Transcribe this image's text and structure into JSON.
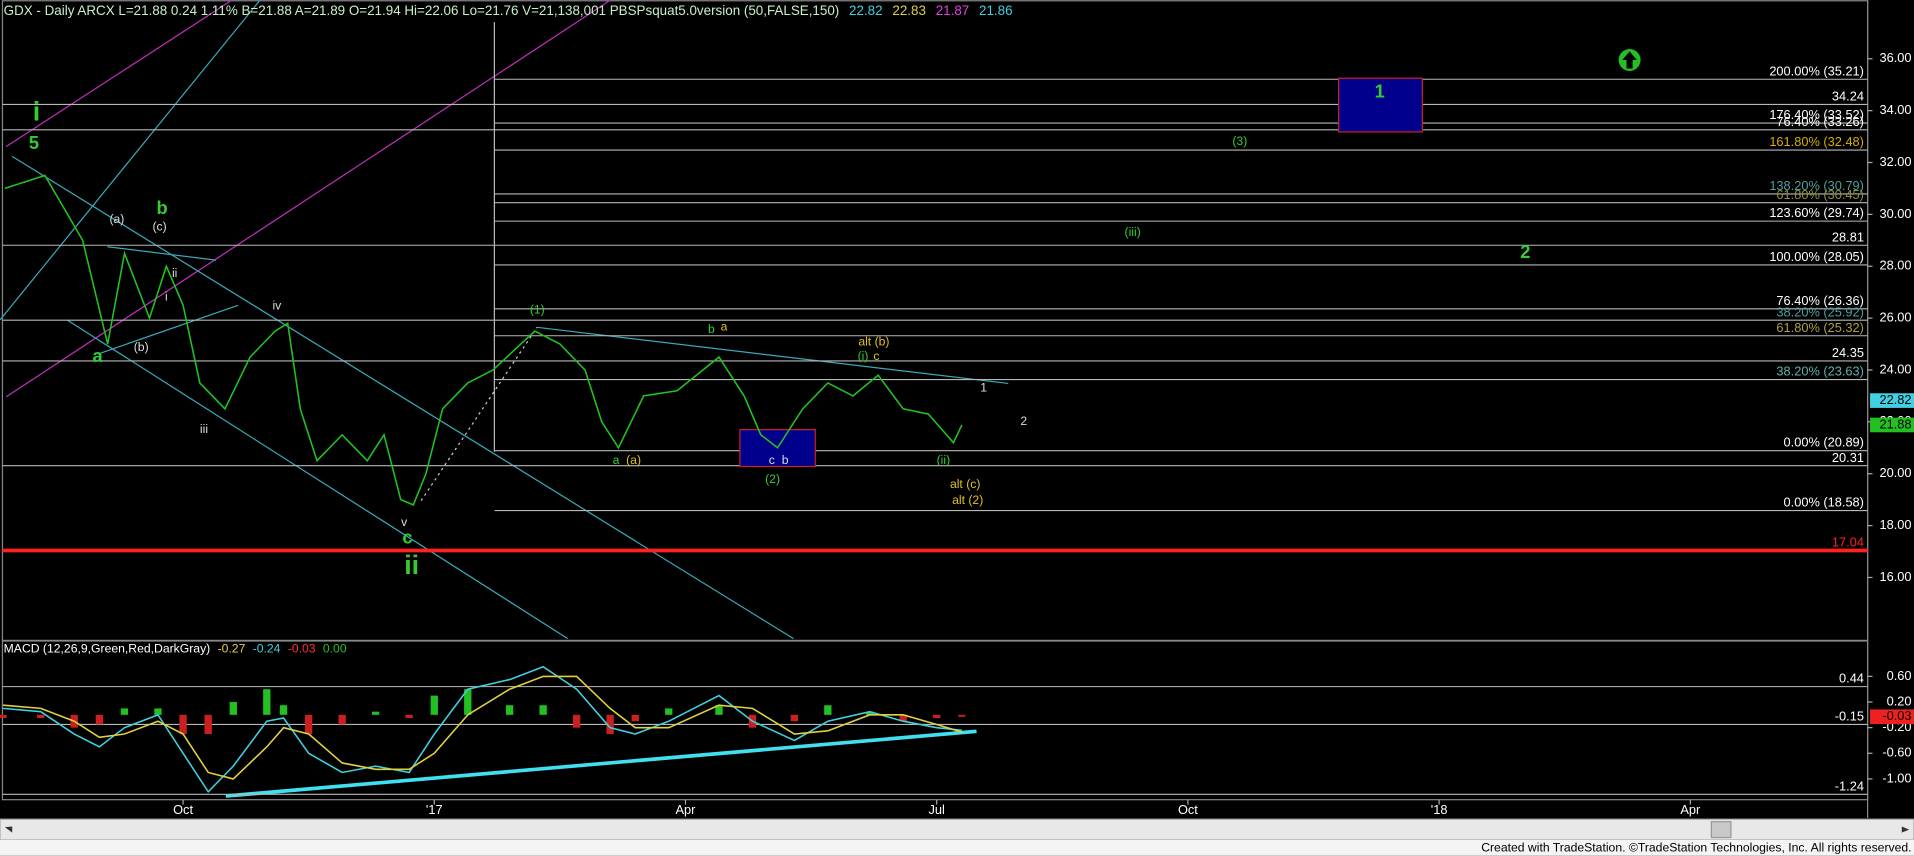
{
  "chart_data": [
    {
      "type": "line",
      "header": [
        {
          "text": "GDX - Daily  ARCX  L=21.88  0.24  1.11%  B=21.88  A=21.89  O=21.94  Hi=22.06  Lo=21.76  V=21,138,001  PBSPsquat5.0version (50,FALSE,150)",
          "color": "#c8f0c8"
        },
        {
          "text": "22.82",
          "color": "#40d0e0"
        },
        {
          "text": "22.83",
          "color": "#e0d040"
        },
        {
          "text": "21.87",
          "color": "#e040e0"
        },
        {
          "text": "21.86",
          "color": "#40d0e0"
        }
      ],
      "xlim": [
        -0.157,
        22.117
      ],
      "ylim": [
        13.55,
        38.26
      ],
      "yticks": [
        {
          "value": 36,
          "label": "36.00"
        },
        {
          "value": 34,
          "label": "34.00"
        },
        {
          "value": 32,
          "label": "32.00"
        },
        {
          "value": 30,
          "label": "30.00"
        },
        {
          "value": 28,
          "label": "28.00"
        },
        {
          "value": 26,
          "label": "26.00"
        },
        {
          "value": 24,
          "label": "24.00"
        },
        {
          "value": 22,
          "label": "22.00"
        },
        {
          "value": 20,
          "label": "20.00"
        },
        {
          "value": 18,
          "label": "18.00"
        },
        {
          "value": 16,
          "label": "16.00"
        }
      ],
      "x": [
        -0.13,
        0.35,
        0.8,
        1.1,
        1.3,
        1.6,
        1.8,
        2.0,
        2.2,
        2.5,
        2.8,
        3.1,
        3.25,
        3.4,
        3.6,
        3.9,
        4.2,
        4.4,
        4.6,
        4.75,
        4.9,
        5.1,
        5.4,
        5.7,
        6.2,
        6.5,
        6.8,
        7.0,
        7.2,
        7.5,
        7.9,
        8.4,
        8.7,
        8.9,
        9.1,
        9.4,
        9.7,
        10.0,
        10.3,
        10.6,
        10.9,
        11.2,
        11.3
      ],
      "series": [
        {
          "color": "#22c022",
          "values": [
            31,
            31.5,
            29,
            25,
            28.5,
            26,
            28,
            26.5,
            23.5,
            22.5,
            24.5,
            25.5,
            25.8,
            22.5,
            20.5,
            21.5,
            20.5,
            21.5,
            19,
            18.8,
            20,
            22.5,
            23.5,
            24,
            25.5,
            25,
            24,
            22,
            21,
            23,
            23.2,
            24.5,
            23,
            21.5,
            21,
            22.5,
            23.5,
            23,
            23.8,
            22.5,
            22.3,
            21.2,
            21.88
          ]
        }
      ],
      "levels": [
        {
          "value": 35.21,
          "label": "200.00% (35.21)",
          "color": "#ffffff",
          "x_start": 5.72
        },
        {
          "value": 34.24,
          "label": "34.24",
          "color": "#ffffff",
          "x_start": -0.157
        },
        {
          "value": 33.52,
          "label": "176.40% (33.52)",
          "color": "#ffffff",
          "x_start": 5.72
        },
        {
          "value": 33.26,
          "label": "76.40% (33.26)",
          "color": "#ffffff",
          "x_start": -0.157
        },
        {
          "value": 32.48,
          "label": "161.80% (32.48)",
          "color": "#d4b000",
          "x_start": 5.72
        },
        {
          "value": 30.79,
          "label": "138.20% (30.79)",
          "color": "#4fa0a0",
          "x_start": 5.72
        },
        {
          "value": 30.45,
          "label": "61.80% (30.45)",
          "color": "#909040",
          "x_start": 5.72
        },
        {
          "value": 29.74,
          "label": "123.60% (29.74)",
          "color": "#ffffff",
          "x_start": 5.72
        },
        {
          "value": 28.81,
          "label": "28.81",
          "color": "#ffffff",
          "x_start": -0.157
        },
        {
          "value": 28.05,
          "label": "100.00% (28.05)",
          "color": "#ffffff",
          "x_start": 5.72
        },
        {
          "value": 26.36,
          "label": "76.40% (26.36)",
          "color": "#ffffff",
          "x_start": 5.72
        },
        {
          "value": 25.92,
          "label": "38.20% (25.92)",
          "color": "#4fa0a0",
          "x_start": -0.157
        },
        {
          "value": 25.32,
          "label": "61.80% (25.32)",
          "color": "#b0a040",
          "x_start": 5.72
        },
        {
          "value": 24.35,
          "label": "24.35",
          "color": "#ffffff",
          "x_start": -0.157
        },
        {
          "value": 23.63,
          "label": "38.20% (23.63)",
          "color": "#60b0b0",
          "x_start": 5.72
        },
        {
          "value": 20.89,
          "label": "0.00% (20.89)",
          "color": "#ffffff",
          "x_start": 5.72
        },
        {
          "value": 20.31,
          "label": "20.31",
          "color": "#ffffff",
          "x_start": -0.157
        },
        {
          "value": 18.58,
          "label": "0.00% (18.58)",
          "color": "#ffffff",
          "x_start": 5.72
        },
        {
          "value": 17.04,
          "label": "17.04",
          "color": "#ff2020",
          "x_start": -0.157,
          "style": "thick"
        }
      ],
      "zones": [
        {
          "x0": 15.8,
          "x1": 16.8,
          "y0": 33.18,
          "y1": 35.25
        },
        {
          "x0": 8.65,
          "x1": 9.55,
          "y0": 20.28,
          "y1": 21.7
        }
      ],
      "price_markers": [
        {
          "value": 22.82,
          "label": "22.82",
          "color": "#40d0e0"
        },
        {
          "value": 21.88,
          "label": "21.88",
          "color": "#22c022"
        }
      ],
      "annotations": [
        {
          "text": "i",
          "x": 0.25,
          "y": 33.9,
          "color": "#33cc33",
          "size": "large"
        },
        {
          "text": "5",
          "x": 0.22,
          "y": 32.7,
          "color": "#33cc33",
          "size": "medium"
        },
        {
          "text": "b",
          "x": 1.75,
          "y": 30.2,
          "color": "#33cc33",
          "size": "medium"
        },
        {
          "text": "(a)",
          "x": 1.21,
          "y": 29.8,
          "color": "#dddddd"
        },
        {
          "text": "(c)",
          "x": 1.72,
          "y": 29.5,
          "color": "#dddddd"
        },
        {
          "text": "ii",
          "x": 1.9,
          "y": 27.7,
          "color": "#dddddd"
        },
        {
          "text": "i",
          "x": 1.8,
          "y": 26.8,
          "color": "#dddddd"
        },
        {
          "text": "iv",
          "x": 3.12,
          "y": 26.45,
          "color": "#dddddd"
        },
        {
          "text": "a",
          "x": 0.98,
          "y": 24.5,
          "color": "#33cc33",
          "size": "medium"
        },
        {
          "text": "(b)",
          "x": 1.5,
          "y": 24.85,
          "color": "#dddddd"
        },
        {
          "text": "iii",
          "x": 2.25,
          "y": 21.7,
          "color": "#dddddd"
        },
        {
          "text": "v",
          "x": 4.64,
          "y": 18.1,
          "color": "#dddddd"
        },
        {
          "text": "c",
          "x": 4.68,
          "y": 17.5,
          "color": "#33cc33",
          "size": "medium"
        },
        {
          "text": "ii",
          "x": 4.73,
          "y": 16.4,
          "color": "#33cc33",
          "size": "large"
        },
        {
          "text": "(1)",
          "x": 6.23,
          "y": 26.3,
          "color": "#33cc33"
        },
        {
          "text": "b",
          "x": 8.31,
          "y": 25.55,
          "color": "#33cc33"
        },
        {
          "text": "a",
          "x": 8.46,
          "y": 25.65,
          "color": "#e0c020"
        },
        {
          "text": "a",
          "x": 7.17,
          "y": 20.5,
          "color": "#33cc33"
        },
        {
          "text": "(a)",
          "x": 7.38,
          "y": 20.5,
          "color": "#e0c020"
        },
        {
          "text": "c",
          "x": 9.03,
          "y": 20.5,
          "color": "#dddddd"
        },
        {
          "text": "b",
          "x": 9.19,
          "y": 20.5,
          "color": "#dddddd"
        },
        {
          "text": "(2)",
          "x": 9.04,
          "y": 19.76,
          "color": "#33cc33"
        },
        {
          "text": "alt (b)",
          "x": 10.25,
          "y": 25.06,
          "color": "#e0c020"
        },
        {
          "text": "(i)",
          "x": 10.12,
          "y": 24.5,
          "color": "#33cc33"
        },
        {
          "text": "c",
          "x": 10.28,
          "y": 24.5,
          "color": "#e0c020"
        },
        {
          "text": "1",
          "x": 11.56,
          "y": 23.3,
          "color": "#dddddd"
        },
        {
          "text": "2",
          "x": 12.04,
          "y": 22.0,
          "color": "#dddddd"
        },
        {
          "text": "(ii)",
          "x": 11.08,
          "y": 20.5,
          "color": "#33cc33"
        },
        {
          "text": "alt (c)",
          "x": 11.34,
          "y": 19.58,
          "color": "#e0c020"
        },
        {
          "text": "alt (2)",
          "x": 11.37,
          "y": 18.96,
          "color": "#e0c020"
        },
        {
          "text": "(3)",
          "x": 14.62,
          "y": 32.8,
          "color": "#33cc33"
        },
        {
          "text": "(iii)",
          "x": 13.34,
          "y": 29.3,
          "color": "#33cc33"
        },
        {
          "text": "2",
          "x": 18.03,
          "y": 28.5,
          "color": "#33cc33",
          "size": "medium"
        },
        {
          "text": "1",
          "x": 16.29,
          "y": 34.7,
          "color": "#33cc33",
          "size": "medium"
        }
      ]
    },
    {
      "type": "line",
      "title": "MACD (12,26,9,Green,Red,DarkGray)",
      "title_values": [
        {
          "text": "-0.27",
          "color": "#e0d040"
        },
        {
          "text": "-0.24",
          "color": "#40d0e0"
        },
        {
          "text": "-0.03",
          "color": "#ff3030"
        },
        {
          "text": "0.00",
          "color": "#22c022"
        }
      ],
      "xlim": [
        -0.157,
        22.117
      ],
      "xticks": [
        {
          "value": 2,
          "label": "Oct"
        },
        {
          "value": 5,
          "label": "'17"
        },
        {
          "value": 8,
          "label": "Apr"
        },
        {
          "value": 11,
          "label": "Jul"
        },
        {
          "value": 14,
          "label": "Oct"
        },
        {
          "value": 17,
          "label": "'18"
        },
        {
          "value": 20,
          "label": "Apr"
        }
      ],
      "ylim": [
        -1.324,
        1.152
      ],
      "yticks": [
        {
          "value": 0.6,
          "label": "0.60"
        },
        {
          "value": 0.2,
          "label": "0.20"
        },
        {
          "value": -0.2,
          "label": "-0.20"
        },
        {
          "value": -0.6,
          "label": "-0.60"
        },
        {
          "value": -1,
          "label": "-1.00"
        }
      ],
      "x": [
        -0.15,
        0.3,
        0.7,
        1.0,
        1.3,
        1.7,
        2.0,
        2.3,
        2.6,
        3.0,
        3.2,
        3.5,
        3.9,
        4.3,
        4.7,
        5.0,
        5.4,
        5.9,
        6.3,
        6.7,
        7.1,
        7.4,
        7.8,
        8.4,
        8.8,
        9.3,
        9.7,
        10.2,
        10.6,
        11.0,
        11.3
      ],
      "series": [
        {
          "color": "#40d0e0",
          "values": [
            0.1,
            0.05,
            -0.3,
            -0.5,
            -0.2,
            0.0,
            -0.6,
            -1.2,
            -0.8,
            -0.1,
            -0.05,
            -0.6,
            -0.9,
            -0.8,
            -0.9,
            -0.3,
            0.4,
            0.55,
            0.75,
            0.4,
            -0.2,
            -0.3,
            -0.1,
            0.3,
            -0.1,
            -0.4,
            -0.1,
            0.05,
            -0.1,
            -0.2,
            -0.24
          ]
        },
        {
          "color": "#e0d040",
          "values": [
            0.15,
            0.1,
            -0.1,
            -0.35,
            -0.3,
            -0.1,
            -0.3,
            -0.9,
            -1.0,
            -0.5,
            -0.2,
            -0.3,
            -0.75,
            -0.85,
            -0.85,
            -0.6,
            0.0,
            0.4,
            0.6,
            0.6,
            0.1,
            -0.2,
            -0.2,
            0.15,
            0.1,
            -0.3,
            -0.25,
            0.0,
            0.0,
            -0.15,
            -0.27
          ]
        }
      ],
      "histogram": {
        "up_color": "#22c022",
        "down_color": "#cc2020",
        "values": [
          -0.05,
          -0.05,
          -0.2,
          -0.15,
          0.1,
          0.1,
          -0.3,
          -0.3,
          0.2,
          0.4,
          0.15,
          -0.3,
          -0.15,
          0.05,
          -0.05,
          0.3,
          0.4,
          0.15,
          0.15,
          -0.2,
          -0.3,
          -0.1,
          0.1,
          0.15,
          -0.2,
          -0.1,
          0.15,
          0.05,
          -0.1,
          -0.05,
          -0.03
        ]
      },
      "levels": [
        {
          "value": 0.44,
          "label": "0.44",
          "color": "#ffffff",
          "x_start": -0.157
        },
        {
          "value": -0.15,
          "label": "-0.15",
          "color": "#ffffff",
          "x_start": -0.157
        },
        {
          "value": -1.24,
          "label": "-1.24",
          "color": "#ffffff",
          "x_start": -0.157
        }
      ],
      "price_markers": [
        {
          "value": -0.03,
          "label": "-0.03",
          "color": "#ee2020"
        }
      ]
    }
  ],
  "footer": "Created with TradeStation. ©TradeStation Technologies, Inc. All rights reserved."
}
